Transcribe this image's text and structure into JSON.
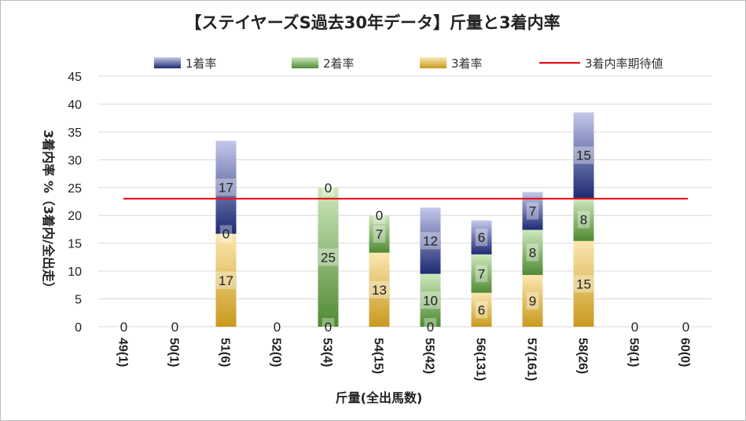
{
  "chart_data": {
    "type": "bar",
    "stacked": true,
    "title": "【ステイヤーズS過去30年データ】斤量と3着内率",
    "xlabel": "斤量(全出馬数)",
    "ylabel": "3着内率 %（3着内/全出走）",
    "ylim": [
      0,
      45
    ],
    "yticks": [
      0,
      5,
      10,
      15,
      20,
      25,
      30,
      35,
      40,
      45
    ],
    "grid": true,
    "legend_position": "top",
    "categories": [
      "49(1)",
      "50(1)",
      "51(6)",
      "52(0)",
      "53(4)",
      "54(15)",
      "55(42)",
      "56(131)",
      "57(161)",
      "58(26)",
      "59(1)",
      "60(0)"
    ],
    "series": [
      {
        "name": "3着率",
        "values": [
          0,
          0,
          16.7,
          0,
          0,
          13.3,
          0,
          6.1,
          9.3,
          15.4,
          0,
          0
        ],
        "labels": [
          "0",
          "0",
          "17",
          "0",
          "0",
          "13",
          "0",
          "6",
          "9",
          "15",
          "0",
          "0"
        ],
        "color": "#f2c55a"
      },
      {
        "name": "2着率",
        "values": [
          0,
          0,
          0,
          0,
          25,
          6.7,
          9.5,
          6.9,
          8.1,
          7.7,
          0,
          0
        ],
        "labels": [
          "",
          "",
          "0",
          "",
          "25",
          "7",
          "10",
          "7",
          "8",
          "8",
          "",
          ""
        ],
        "color": "#7dba5b"
      },
      {
        "name": "1着率",
        "values": [
          0,
          0,
          16.7,
          0,
          0,
          0,
          11.9,
          6.1,
          6.8,
          15.4,
          0,
          0
        ],
        "labels": [
          "",
          "",
          "17",
          "",
          "0",
          "0",
          "12",
          "6",
          "7",
          "15",
          "",
          ""
        ],
        "color": "#4450a0"
      }
    ],
    "reference_line": {
      "name": "3着内率期待値",
      "value": 23.0,
      "color": "#e8121c"
    }
  }
}
